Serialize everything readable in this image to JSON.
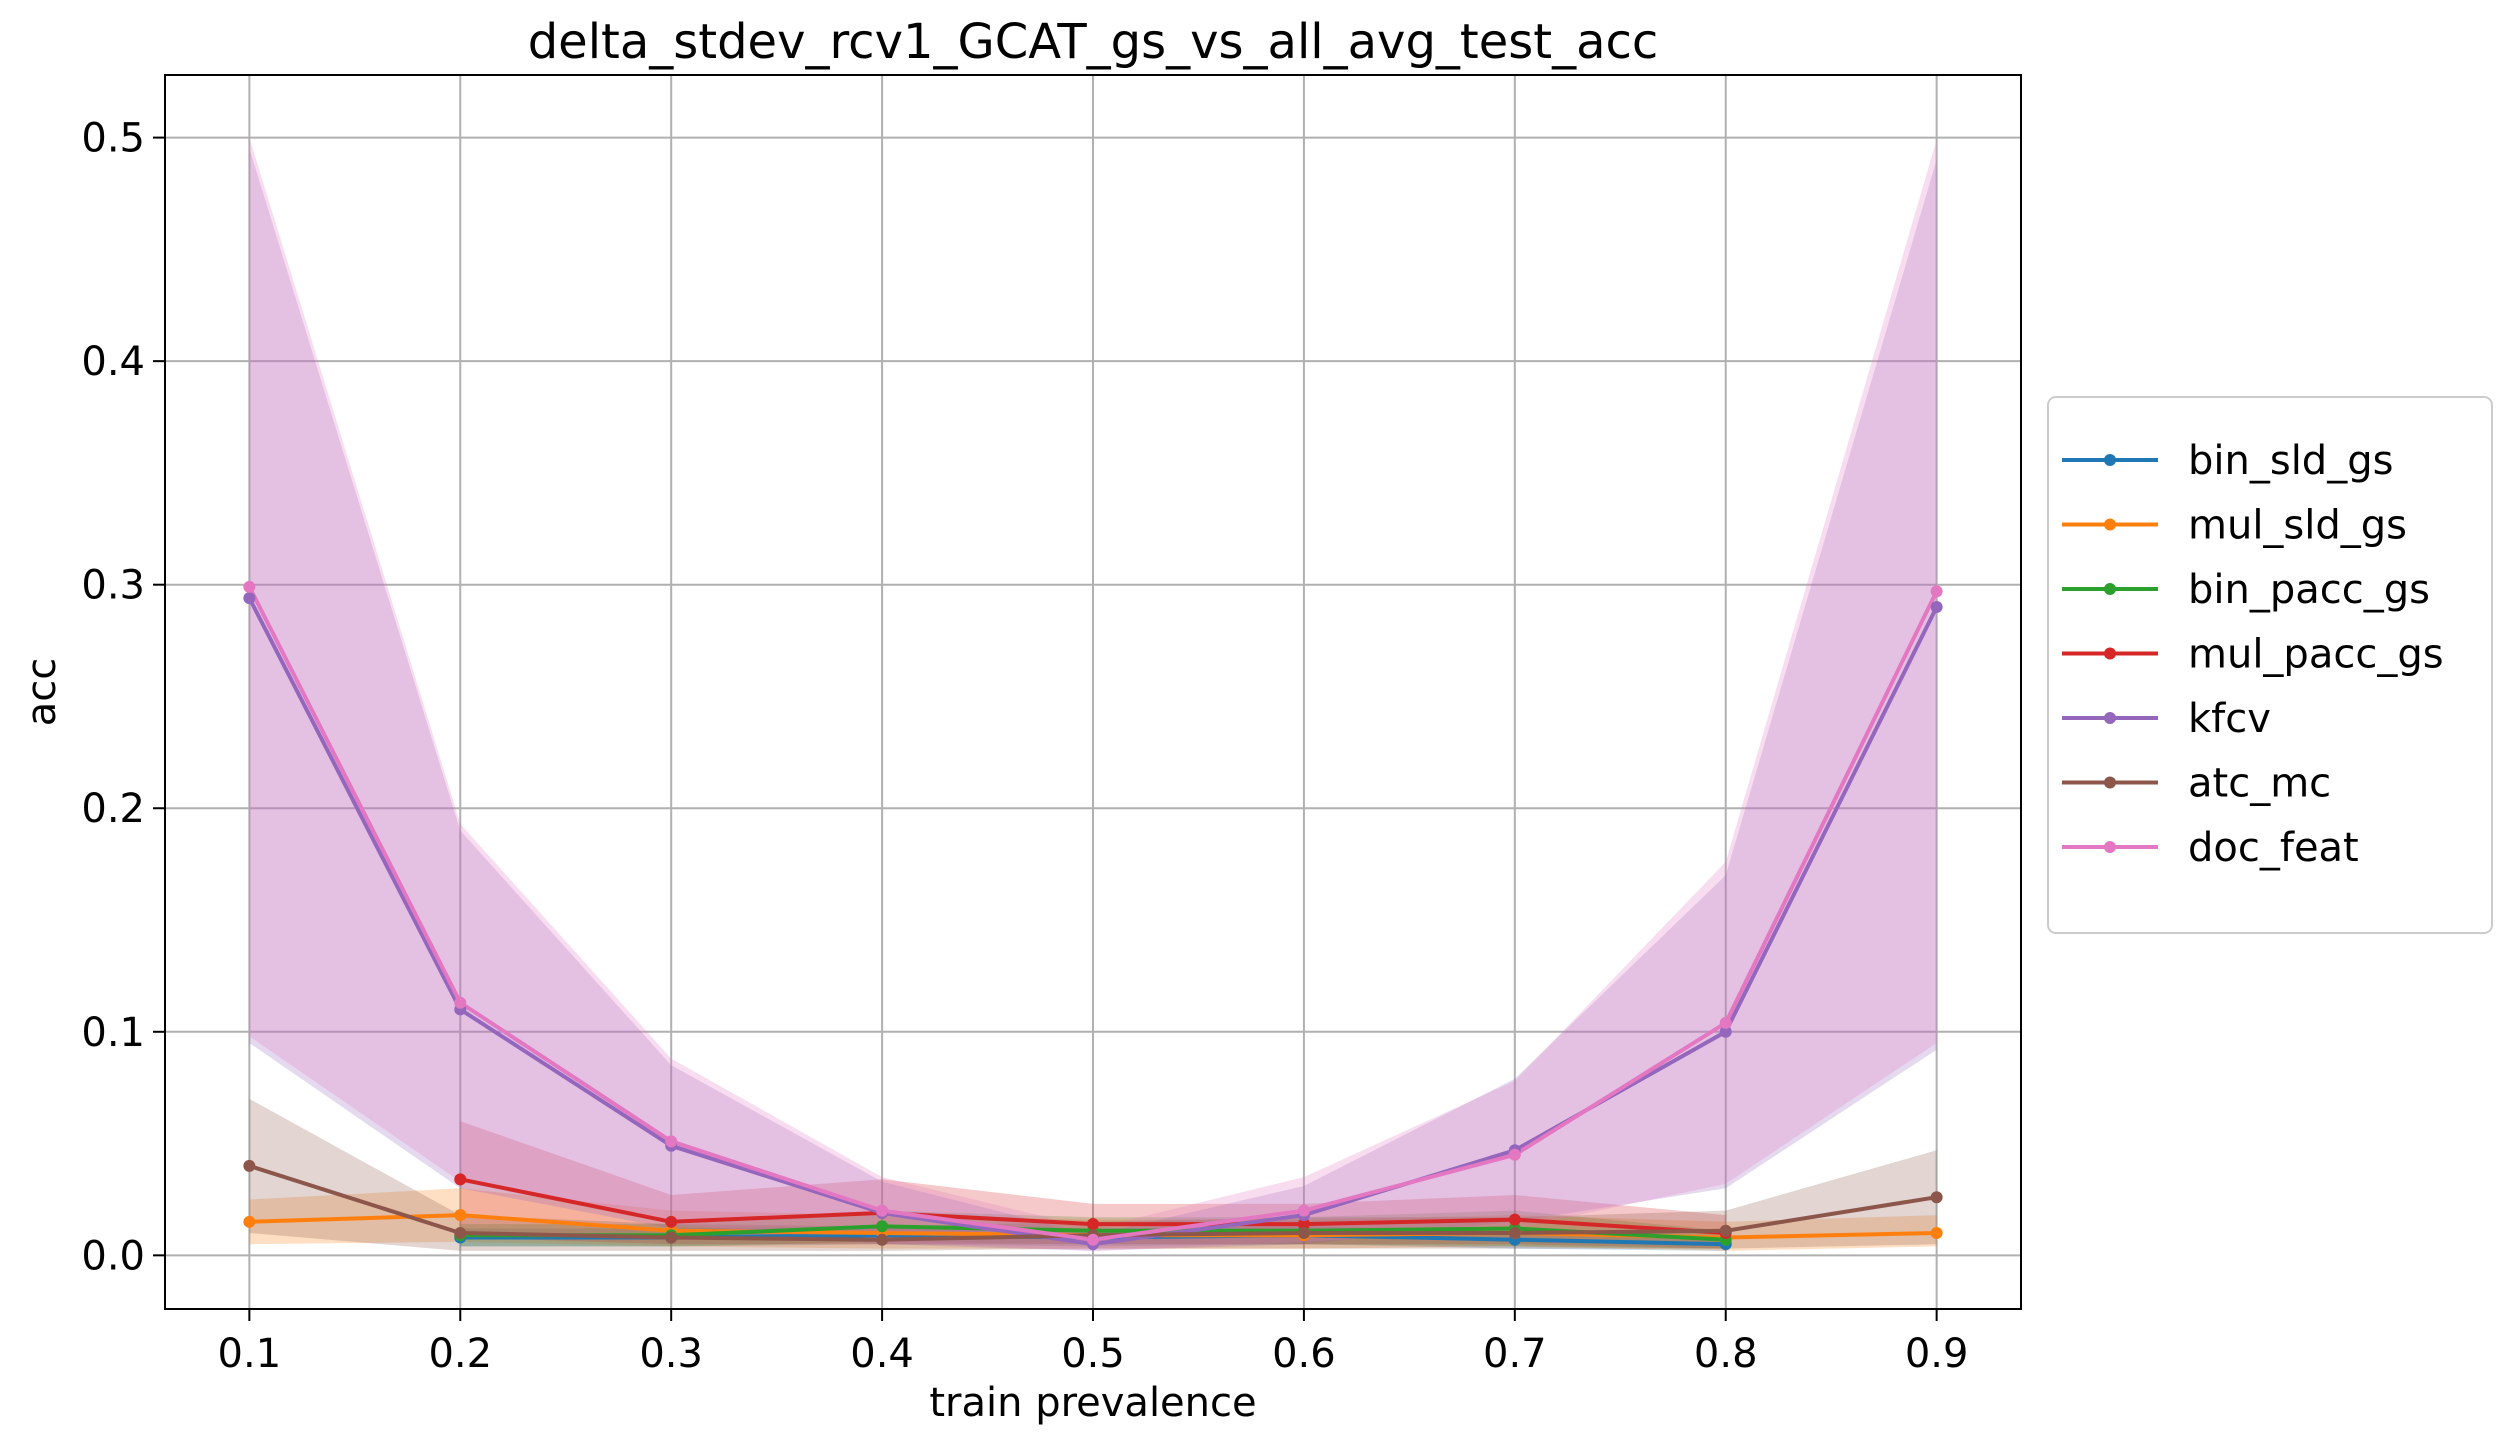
{
  "chart_data": {
    "type": "line",
    "title": "delta_stdev_rcv1_GCAT_gs_vs_all_avg_test_acc",
    "xlabel": "train prevalence",
    "ylabel": "acc",
    "x": [
      0.1,
      0.2,
      0.3,
      0.4,
      0.5,
      0.6,
      0.7,
      0.8,
      0.9
    ],
    "xticks": [
      "0.1",
      "0.2",
      "0.3",
      "0.4",
      "0.5",
      "0.6",
      "0.7",
      "0.8",
      "0.9"
    ],
    "yticks": [
      "0.0",
      "0.1",
      "0.2",
      "0.3",
      "0.4",
      "0.5"
    ],
    "xlim": [
      0.06,
      0.94
    ],
    "ylim": [
      -0.024,
      0.528
    ],
    "grid": true,
    "legend_position": "right, outside plot",
    "series": [
      {
        "name": "bin_sld_gs",
        "color": "#1f77b4",
        "x": [
          0.2,
          0.3,
          0.4,
          0.5,
          0.6,
          0.7,
          0.8
        ],
        "y": [
          0.008,
          0.008,
          0.009,
          0.008,
          0.009,
          0.007,
          0.005
        ],
        "lower": [
          0.004,
          0.004,
          0.005,
          0.004,
          0.005,
          0.003,
          0.002
        ],
        "upper": [
          0.012,
          0.012,
          0.013,
          0.012,
          0.013,
          0.011,
          0.008
        ]
      },
      {
        "name": "mul_sld_gs",
        "color": "#ff7f0e",
        "x": [
          0.1,
          0.2,
          0.3,
          0.4,
          0.5,
          0.6,
          0.7,
          0.8,
          0.9
        ],
        "y": [
          0.015,
          0.018,
          0.011,
          0.01,
          0.009,
          0.009,
          0.01,
          0.008,
          0.01
        ],
        "lower": [
          0.005,
          0.006,
          0.004,
          0.003,
          0.003,
          0.003,
          0.004,
          0.002,
          0.004
        ],
        "upper": [
          0.025,
          0.03,
          0.02,
          0.018,
          0.016,
          0.016,
          0.018,
          0.015,
          0.018
        ]
      },
      {
        "name": "bin_pacc_gs",
        "color": "#2ca02c",
        "x": [
          0.2,
          0.3,
          0.4,
          0.5,
          0.6,
          0.7,
          0.8
        ],
        "y": [
          0.009,
          0.009,
          0.013,
          0.011,
          0.011,
          0.012,
          0.007
        ],
        "lower": [
          0.004,
          0.004,
          0.006,
          0.005,
          0.005,
          0.004,
          0.003
        ],
        "upper": [
          0.014,
          0.014,
          0.02,
          0.017,
          0.017,
          0.02,
          0.011
        ]
      },
      {
        "name": "mul_pacc_gs",
        "color": "#d62728",
        "x": [
          0.2,
          0.3,
          0.4,
          0.5,
          0.6,
          0.7,
          0.8
        ],
        "y": [
          0.034,
          0.015,
          0.019,
          0.014,
          0.014,
          0.016,
          0.01
        ],
        "lower": [
          0.008,
          0.005,
          0.005,
          0.005,
          0.005,
          0.005,
          0.003
        ],
        "upper": [
          0.06,
          0.027,
          0.034,
          0.023,
          0.023,
          0.027,
          0.018
        ]
      },
      {
        "name": "kfcv",
        "color": "#9467bd",
        "x": [
          0.1,
          0.2,
          0.3,
          0.4,
          0.5,
          0.6,
          0.7,
          0.8,
          0.9
        ],
        "y": [
          0.294,
          0.11,
          0.049,
          0.019,
          0.005,
          0.018,
          0.047,
          0.1,
          0.29
        ],
        "lower": [
          0.095,
          0.03,
          0.012,
          0.005,
          0.002,
          0.005,
          0.015,
          0.03,
          0.092
        ],
        "upper": [
          0.495,
          0.19,
          0.085,
          0.033,
          0.009,
          0.031,
          0.079,
          0.17,
          0.49
        ]
      },
      {
        "name": "atc_mc",
        "color": "#8c564b",
        "x": [
          0.1,
          0.2,
          0.3,
          0.4,
          0.5,
          0.6,
          0.7,
          0.8,
          0.9
        ],
        "y": [
          0.04,
          0.01,
          0.008,
          0.007,
          0.009,
          0.01,
          0.01,
          0.011,
          0.026
        ],
        "lower": [
          0.01,
          0.002,
          0.002,
          0.002,
          0.003,
          0.003,
          0.003,
          0.003,
          0.005
        ],
        "upper": [
          0.07,
          0.018,
          0.014,
          0.013,
          0.015,
          0.017,
          0.017,
          0.02,
          0.047
        ]
      },
      {
        "name": "doc_feat",
        "color": "#e377c2",
        "x": [
          0.1,
          0.2,
          0.3,
          0.4,
          0.5,
          0.6,
          0.7,
          0.8,
          0.9
        ],
        "y": [
          0.299,
          0.113,
          0.051,
          0.02,
          0.007,
          0.02,
          0.045,
          0.104,
          0.297
        ],
        "lower": [
          0.098,
          0.033,
          0.014,
          0.006,
          0.002,
          0.006,
          0.012,
          0.032,
          0.095
        ],
        "upper": [
          0.5,
          0.193,
          0.088,
          0.035,
          0.012,
          0.035,
          0.078,
          0.176,
          0.499
        ]
      }
    ]
  }
}
